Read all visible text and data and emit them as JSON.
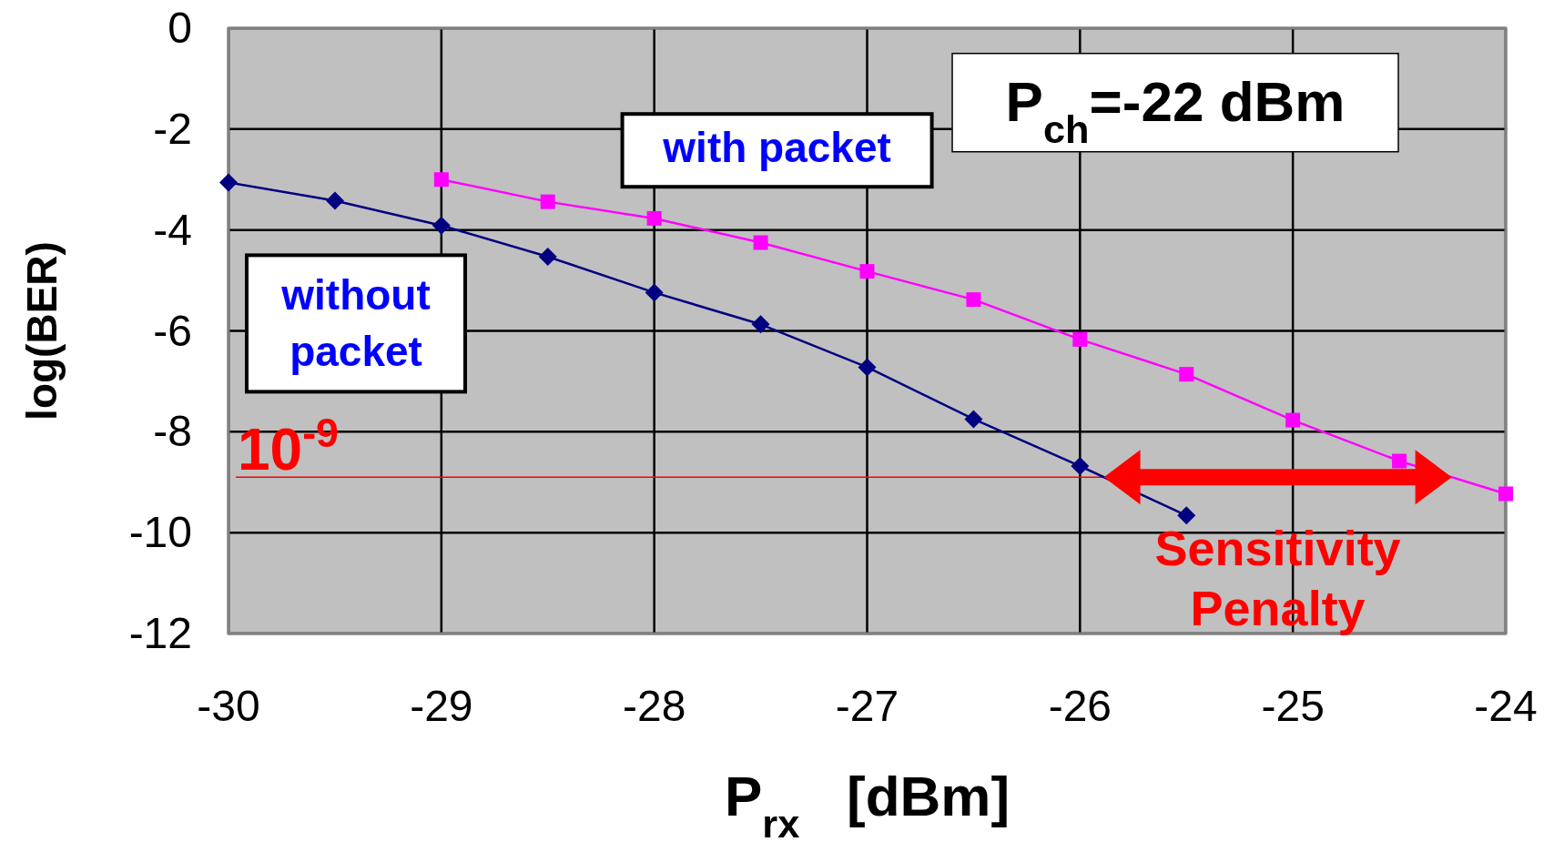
{
  "chart_data": {
    "type": "line",
    "xlabel": "P$_{rx}$   [dBm]",
    "ylabel": "log(BER)",
    "series": [
      {
        "name": "without packet",
        "color": "#000080",
        "marker": "diamond",
        "x": [
          -30,
          -29.5,
          -29,
          -28.5,
          -28,
          -27.5,
          -27,
          -26.5,
          -26,
          -25.5
        ],
        "values": [
          -3.06,
          -3.42,
          -3.91,
          -4.53,
          -5.24,
          -5.87,
          -6.72,
          -7.75,
          -8.68,
          -9.66
        ]
      },
      {
        "name": "with packet",
        "color": "#ff00ff",
        "marker": "square",
        "x": [
          -29,
          -28.5,
          -28,
          -27.5,
          -27,
          -26.5,
          -26,
          -25.5,
          -25,
          -24.5,
          -24
        ],
        "values": [
          -3.0,
          -3.44,
          -3.77,
          -4.25,
          -4.82,
          -5.38,
          -6.17,
          -6.86,
          -7.77,
          -8.58,
          -9.23
        ]
      }
    ],
    "xlim": [
      -30,
      -24
    ],
    "xticks": [
      -30,
      -29,
      -28,
      -27,
      -26,
      -25,
      -24
    ],
    "ylim": [
      -12,
      0
    ],
    "yticks": [
      0,
      -2,
      -4,
      -6,
      -8,
      -10,
      -12
    ],
    "grid": true,
    "ref_lines": [
      {
        "axis": "y",
        "value": -8.9,
        "label": "10$^{-9}$",
        "color": "#ff0000"
      }
    ],
    "annotations": [
      "P$_{ch}$=-22 dBm",
      "Sensitivity Penalty"
    ]
  }
}
